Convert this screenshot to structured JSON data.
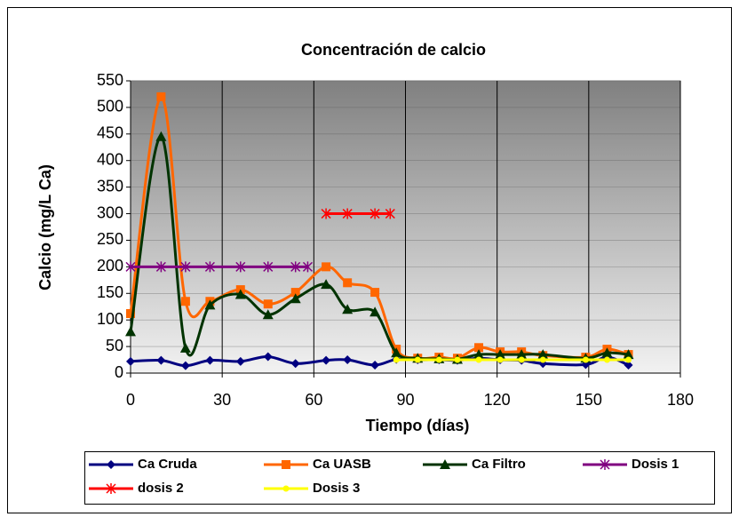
{
  "chart_data": {
    "type": "line",
    "title": "Concentración de calcio",
    "xlabel": "Tiempo (días)",
    "ylabel": "Calcio  (mg/L Ca)",
    "xlim": [
      0,
      180
    ],
    "xticks": [
      0,
      30,
      60,
      90,
      120,
      150,
      180
    ],
    "ylim": [
      0,
      550
    ],
    "yticks": [
      0,
      50,
      100,
      150,
      200,
      250,
      300,
      350,
      400,
      450,
      500,
      550
    ],
    "grid": true,
    "smooth": true,
    "legend": "bottom",
    "series": [
      {
        "name": "Ca Cruda",
        "color": "#000080",
        "marker": "diamond",
        "x": [
          0,
          10,
          18,
          26,
          36,
          45,
          54,
          64,
          71,
          80,
          87,
          94,
          101,
          107,
          114,
          121,
          128,
          135,
          149,
          156,
          163
        ],
        "values": [
          22,
          24,
          14,
          24,
          22,
          31,
          18,
          24,
          25,
          15,
          26,
          25,
          25,
          24,
          28,
          25,
          24,
          18,
          16,
          30,
          15
        ]
      },
      {
        "name": "Ca UASB",
        "color": "#ff6600",
        "marker": "square",
        "x": [
          0,
          10,
          18,
          26,
          36,
          45,
          54,
          64,
          71,
          80,
          87,
          94,
          101,
          107,
          114,
          121,
          128,
          135,
          149,
          156,
          163
        ],
        "values": [
          112,
          520,
          135,
          135,
          157,
          130,
          152,
          200,
          170,
          152,
          45,
          28,
          30,
          28,
          48,
          40,
          40,
          33,
          30,
          45,
          35
        ]
      },
      {
        "name": "Ca Filtro",
        "color": "#003300",
        "marker": "triangle",
        "x": [
          0,
          10,
          18,
          26,
          36,
          45,
          54,
          64,
          71,
          80,
          87,
          94,
          101,
          107,
          114,
          121,
          128,
          135,
          149,
          156,
          163
        ],
        "values": [
          78,
          445,
          47,
          128,
          148,
          110,
          140,
          167,
          120,
          115,
          38,
          28,
          27,
          26,
          35,
          35,
          35,
          35,
          28,
          38,
          35
        ]
      },
      {
        "name": "Dosis 1",
        "color": "#800080",
        "marker": "star",
        "x": [
          0,
          10,
          18,
          26,
          36,
          45,
          54,
          58
        ],
        "values": [
          200,
          200,
          200,
          200,
          200,
          200,
          200,
          200
        ]
      },
      {
        "name": "dosis 2",
        "color": "#ff0000",
        "marker": "star",
        "x": [
          64,
          71,
          80,
          85
        ],
        "values": [
          300,
          300,
          300,
          300
        ]
      },
      {
        "name": "Dosis 3",
        "color": "#ffff00",
        "marker": "circle",
        "x": [
          87,
          94,
          101,
          107,
          114,
          121,
          128,
          135,
          149,
          156,
          163
        ],
        "values": [
          25,
          25,
          25,
          25,
          25,
          25,
          25,
          25,
          25,
          25,
          25
        ]
      }
    ]
  }
}
